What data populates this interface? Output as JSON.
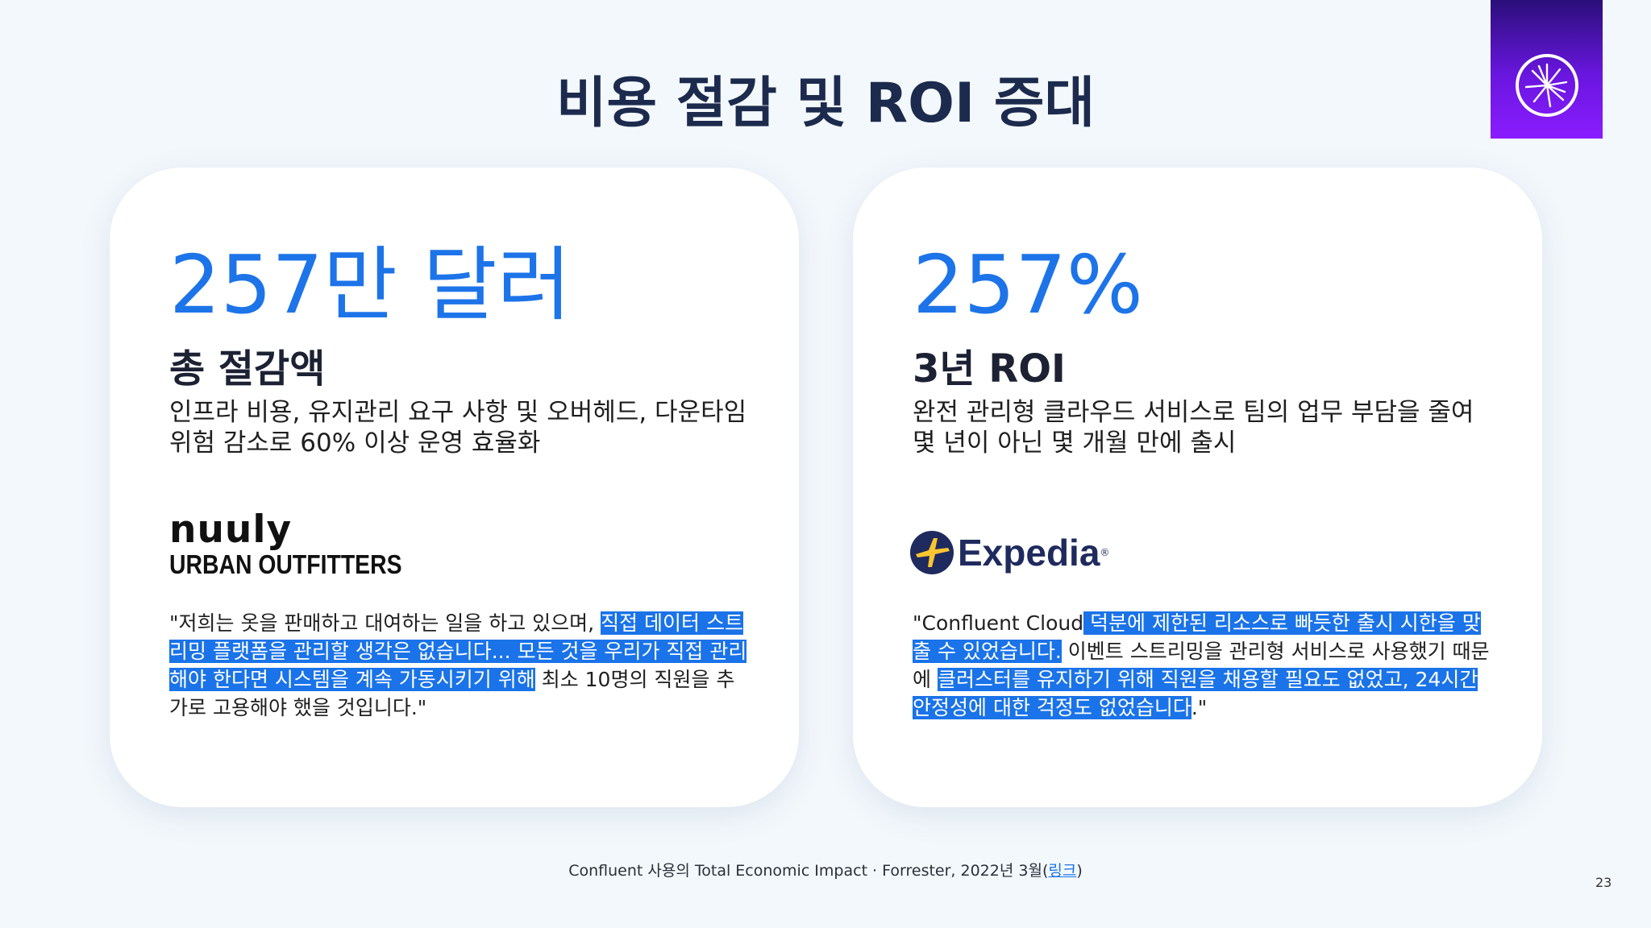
{
  "slide": {
    "title": "비용 절감 및 ROI 증대",
    "page_number": "23"
  },
  "colors": {
    "accent": "#1a73e8",
    "title": "#1c2a4d",
    "logo_bg": "#6a16e0"
  },
  "icons": {
    "logo": "confluent-starburst-icon",
    "expedia": "expedia-plane-icon"
  },
  "left_card": {
    "big_number": "257만 달러",
    "subtitle": "총 절감액",
    "description": "인프라 비용, 유지관리 요구 사항 및 오버헤드, 다운타임 위험 감소로 60% 이상 운영 효율화",
    "brand_line1": "nuuly",
    "brand_line2": "URBAN OUTFITTERS",
    "quote": {
      "part1": "\"저희는 옷을 판매하고 대여하는 일을 하고 있으며, ",
      "highlight": "직접 데이터 스트리밍 플랫폼을 관리할 생각은 없습니다... 모든 것을 우리가 직접 관리해야 한다면 시스템을 계속 가동시키기 위해",
      "part2": " 최소 10명의 직원을 추가로 고용해야 했을 것입니다.\""
    }
  },
  "right_card": {
    "big_number": "257%",
    "subtitle": "3년 ROI",
    "description": "완전 관리형 클라우드 서비스로 팀의 업무 부담을 줄여 몇 년이 아닌 몇 개월 만에 출시",
    "brand": "Expedia",
    "brand_mark": "®",
    "quote": {
      "part1": "\"Confluent Cloud",
      "highlight1": " 덕분에 제한된 리소스로 빠듯한 출시 시한을 맞출 수 있었습니다.",
      "part2": " 이벤트 스트리밍을 관리형 서비스로 사용했기 때문에 ",
      "highlight2": "클러스터를 유지하기 위해 직원을 채용할 필요도 없었고, 24시간 안정성에 대한 걱정도 없었습니다",
      "part3": ".\""
    }
  },
  "footer": {
    "text": "Confluent 사용의 Total Economic Impact · Forrester, 2022년 3월(",
    "link": "링크",
    "end": ")"
  }
}
